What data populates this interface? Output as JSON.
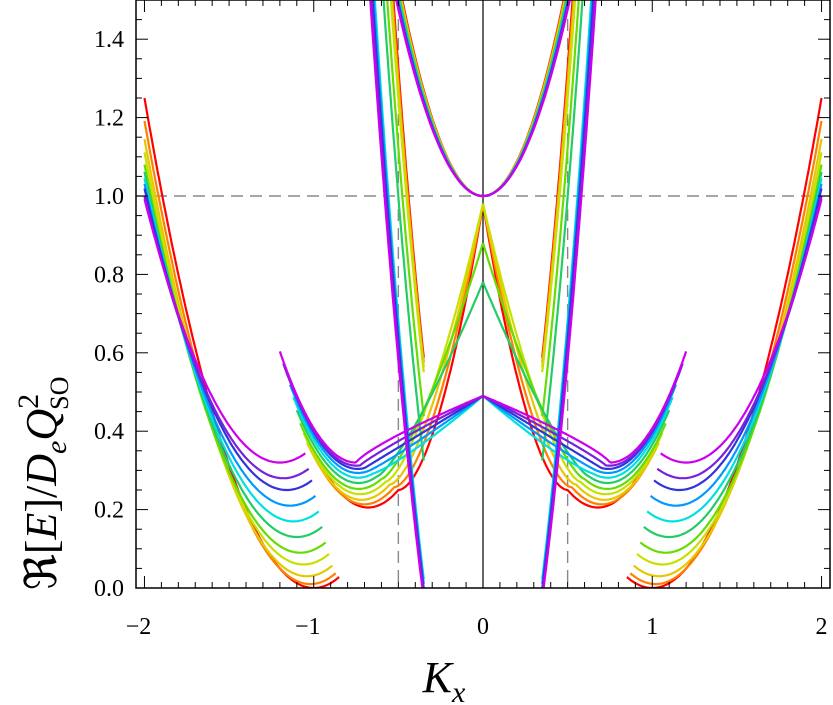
{
  "chart_data": {
    "type": "line",
    "title": "",
    "xlabel": "K_x",
    "ylabel": "ℜ[E]/D_e Q_SO^2",
    "xlim": [
      -2.05,
      2.05
    ],
    "ylim": [
      0.0,
      1.5
    ],
    "x_ticks": [
      -2,
      -1,
      0,
      1,
      2
    ],
    "x_tick_labels": [
      "−2",
      "−1",
      "0",
      "1",
      "2"
    ],
    "y_ticks": [
      0.0,
      0.2,
      0.4,
      0.6,
      0.8,
      1.0,
      1.2,
      1.4
    ],
    "y_tick_labels": [
      "0.0",
      "0.2",
      "0.4",
      "0.6",
      "0.8",
      "1.0",
      "1.2",
      "1.4"
    ],
    "reference_lines": {
      "vertical_dashed_x": [
        -0.5,
        0.5
      ],
      "horizontal_dashed_y": [
        1.0
      ],
      "vertical_solid_x": [
        0.0
      ]
    },
    "series": [
      {
        "color": "#ff0000",
        "values": {
          "min_y": 0.0,
          "cusp_at_half": 0.25,
          "center_y": 0.98
        }
      },
      {
        "color": "#ff7f00",
        "values": {
          "min_y": 0.01,
          "center_y": 0.98
        }
      },
      {
        "color": "#e6c800",
        "values": {
          "min_y": 0.03,
          "center_y": 0.98
        }
      },
      {
        "color": "#c8e000",
        "values": {
          "min_y": 0.06,
          "center_y": 0.98
        }
      },
      {
        "color": "#66dd00",
        "values": {
          "min_y": 0.09,
          "center_y": 0.88
        }
      },
      {
        "color": "#22cc66",
        "values": {
          "min_y": 0.13,
          "center_y": 0.78
        }
      },
      {
        "color": "#00e0e0",
        "values": {
          "min_y": 0.17,
          "center_y": 0.49
        }
      },
      {
        "color": "#0099ff",
        "values": {
          "min_y": 0.21,
          "center_y": 0.49
        }
      },
      {
        "color": "#3333dd",
        "values": {
          "min_y": 0.25,
          "center_y": 0.49
        }
      },
      {
        "color": "#7722dd",
        "values": {
          "min_y": 0.28,
          "center_y": 0.49
        }
      },
      {
        "color": "#cc00ee",
        "values": {
          "min_y": 0.32,
          "center_y": 0.49
        }
      }
    ]
  }
}
